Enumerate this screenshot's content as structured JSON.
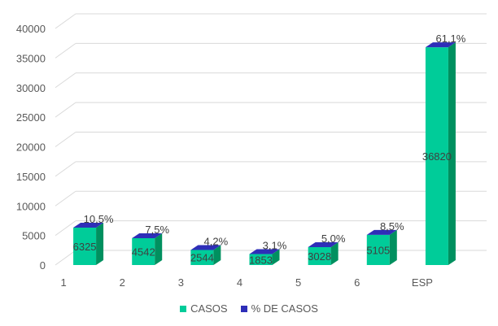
{
  "chart_data": {
    "type": "bar",
    "categories": [
      "1",
      "2",
      "3",
      "4",
      "5",
      "6",
      "ESP"
    ],
    "series": [
      {
        "name": "CASOS",
        "values": [
          6325,
          4542,
          2544,
          1853,
          3028,
          5105,
          36820
        ],
        "color": "#00CC99"
      },
      {
        "name": "% DE CASOS",
        "values": [
          "10,5%",
          "7,5%",
          "4,2%",
          "3,1%",
          "5,0%",
          "8,5%",
          "61,1%"
        ],
        "color": "#2E2EB8"
      }
    ],
    "yticks": [
      "0",
      "5000",
      "10000",
      "15000",
      "20000",
      "25000",
      "30000",
      "35000",
      "40000"
    ],
    "ylim": [
      0,
      40000
    ],
    "grid": true,
    "legend": "bottom"
  }
}
